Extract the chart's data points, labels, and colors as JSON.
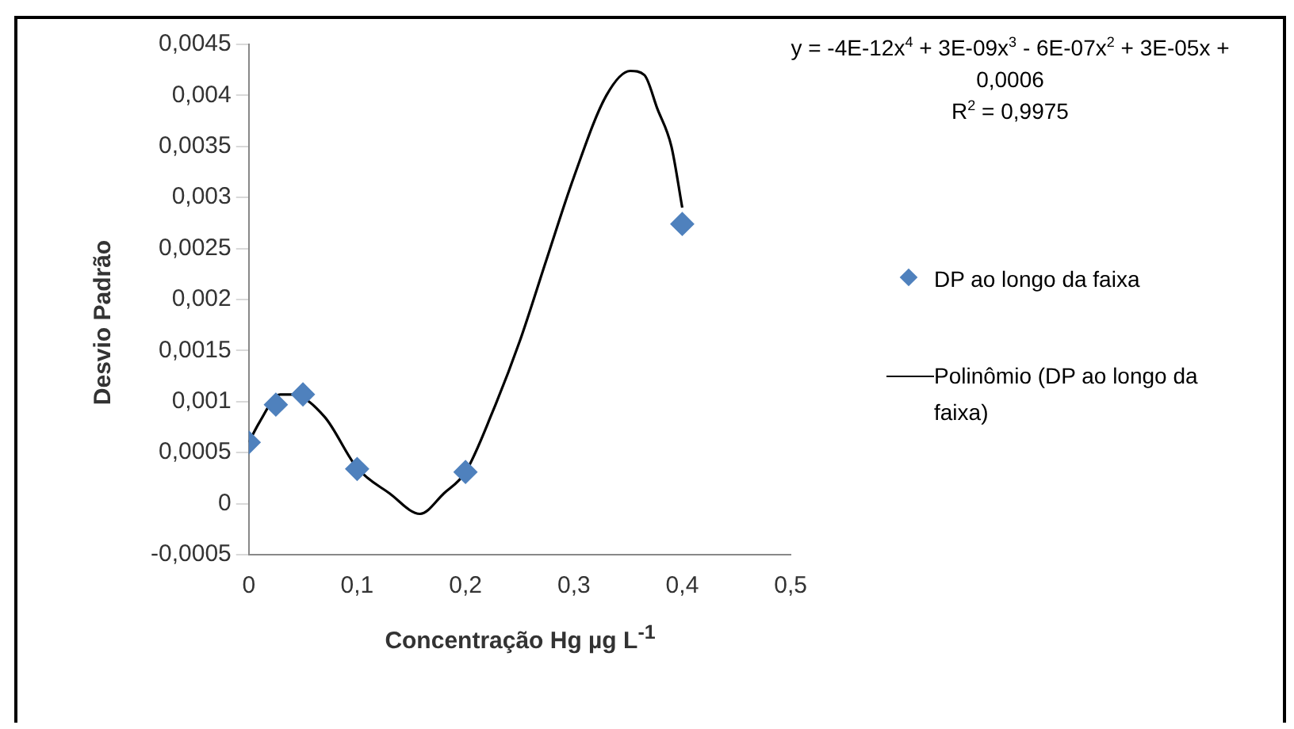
{
  "chart_data": {
    "type": "scatter",
    "xlabel": "Concentração Hg µg L$^{-1}$",
    "ylabel": "Desvio Padrão",
    "annotations": [
      "y = -4E-12x$^{4}$ + 3E-09x$^{3}$ - 6E-07x$^{2}$ + 3E-05x + 0,0006",
      "R$^{2}$ = 0,9975"
    ],
    "series": [
      {
        "name": "DP ao longo da faixa",
        "type": "scatter",
        "marker": "diamond",
        "color": "#4f81bd",
        "x": [
          0,
          0.025,
          0.05,
          0.1,
          0.2,
          0.4
        ],
        "values": [
          0.0006,
          0.00097,
          0.00107,
          0.00034,
          0.00031,
          0.00274
        ]
      },
      {
        "name": "Polinômio (DP ao longo da faixa)",
        "type": "line",
        "marker": "none",
        "color": "#000000",
        "x": [
          0,
          0.01,
          0.029,
          0.04,
          0.07,
          0.1,
          0.13,
          0.158,
          0.18,
          0.2,
          0.225,
          0.25,
          0.275,
          0.3,
          0.33,
          0.352,
          0.365,
          0.377,
          0.39,
          0.4
        ],
        "values": [
          0.0006,
          0.0008,
          0.00107,
          0.00107,
          0.00085,
          0.00035,
          0.0001,
          -0.0001,
          0.0001,
          0.00031,
          0.0009,
          0.00159,
          0.0024,
          0.0032,
          0.004,
          0.00424,
          0.0042,
          0.00387,
          0.0035,
          0.0029
        ]
      }
    ],
    "xlim": [
      0,
      0.5
    ],
    "xticks": [
      0,
      {
        "value": 0.1,
        "label": "0,1"
      },
      {
        "value": 0.2,
        "label": "0,2"
      },
      {
        "value": 0.3,
        "label": "0,3"
      },
      {
        "value": 0.4,
        "label": "0,4"
      },
      {
        "value": 0.5,
        "label": "0,5"
      }
    ],
    "ylim": [
      -0.0005,
      0.0045
    ],
    "yticks": [
      {
        "value": -0.0005,
        "label": "-0,0005"
      },
      0,
      {
        "value": 0.0005,
        "label": "0,0005"
      },
      {
        "value": 0.001,
        "label": "0,001"
      },
      {
        "value": 0.0015,
        "label": "0,0015"
      },
      {
        "value": 0.002,
        "label": "0,002"
      },
      {
        "value": 0.0025,
        "label": "0,0025"
      },
      {
        "value": 0.003,
        "label": "0,003"
      },
      {
        "value": 0.0035,
        "label": "0,0035"
      },
      {
        "value": 0.004,
        "label": "0,004"
      },
      {
        "value": 0.0045,
        "label": "0,0045"
      }
    ],
    "grid": false,
    "legend": "right"
  }
}
